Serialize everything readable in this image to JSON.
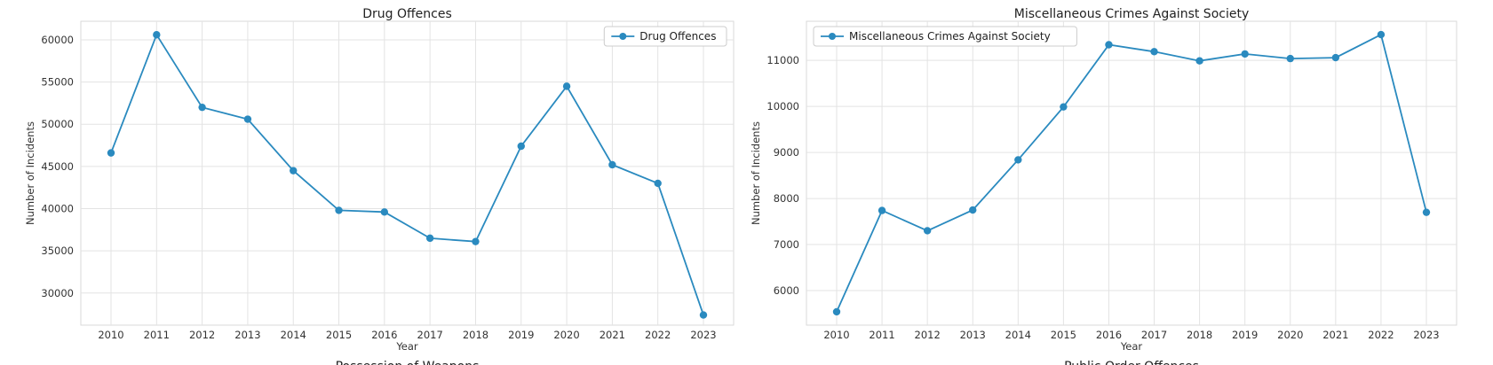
{
  "chart_data": [
    {
      "type": "line",
      "title": "Drug Offences",
      "xlabel": "Year",
      "ylabel": "Number of Incidents",
      "x": [
        2010,
        2011,
        2012,
        2013,
        2014,
        2015,
        2016,
        2017,
        2018,
        2019,
        2020,
        2021,
        2022,
        2023
      ],
      "series": [
        {
          "name": "Drug Offences",
          "values": [
            46600,
            60600,
            52000,
            50600,
            44500,
            39800,
            39600,
            36500,
            36100,
            47400,
            54500,
            45200,
            43000,
            27400
          ]
        }
      ],
      "yticks": [
        30000,
        35000,
        40000,
        45000,
        50000,
        55000,
        60000
      ],
      "ylim": [
        26200,
        62200
      ],
      "grid": true,
      "legend": "top-right",
      "color": "#2a8abf"
    },
    {
      "type": "line",
      "title": "Miscellaneous Crimes Against Society",
      "xlabel": "Year",
      "ylabel": "Number of Incidents",
      "x": [
        2010,
        2011,
        2012,
        2013,
        2014,
        2015,
        2016,
        2017,
        2018,
        2019,
        2020,
        2021,
        2022,
        2023
      ],
      "series": [
        {
          "name": "Miscellaneous Crimes Against Society",
          "values": [
            5540,
            7740,
            7300,
            7750,
            8840,
            9990,
            11340,
            11190,
            10990,
            11140,
            11040,
            11060,
            11560,
            7700
          ]
        }
      ],
      "yticks": [
        6000,
        7000,
        8000,
        9000,
        10000,
        11000
      ],
      "ylim": [
        5250,
        11850
      ],
      "grid": true,
      "legend": "top-left",
      "color": "#2a8abf"
    }
  ],
  "next_row_titles": [
    "Possession of Weapons",
    "Public Order Offences"
  ]
}
